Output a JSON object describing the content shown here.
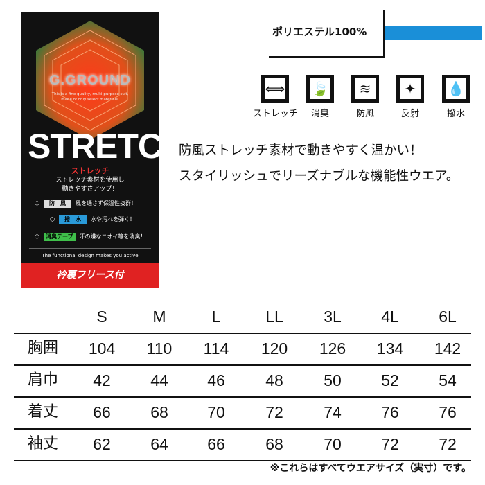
{
  "card": {
    "brand": "G.GROUND",
    "tagline_1": "This is a fine quality, multi-purpose suit,",
    "tagline_2": "made of only select materials.",
    "headline": "STRETCH",
    "headline_kana": "ストレッチ",
    "desc_1": "ストレッチ素材を使用し",
    "desc_2": "動きやすさアップ！",
    "features": [
      {
        "name": "防　風",
        "text": "風を通さず保温性抜群！",
        "color": "#dddddd"
      },
      {
        "name": "撥　水",
        "text": "水や汚れを弾く！",
        "color": "#2a9ad8"
      },
      {
        "name": "消臭テープ",
        "text": "汗の嫌なニオイ等を消臭！",
        "color": "#3fbf4a"
      }
    ],
    "slogan": "The functional design makes you active",
    "banner": "衿裏フリース付"
  },
  "material": {
    "label": "ポリエステル100%",
    "color": "#1a8fd8"
  },
  "icons": [
    {
      "icon": "stretch-arrow",
      "label": "ストレッチ"
    },
    {
      "icon": "leaf",
      "label": "消臭"
    },
    {
      "icon": "wind",
      "label": "防風"
    },
    {
      "icon": "sparkle",
      "label": "反射"
    },
    {
      "icon": "water-drops",
      "label": "撥水"
    }
  ],
  "description": [
    "防風ストレッチ素材で動きやすく温かい！",
    "スタイリッシュでリーズナブルな機能性ウエア。"
  ],
  "size_table": {
    "headers": [
      "S",
      "M",
      "L",
      "LL",
      "3L",
      "4L",
      "6L"
    ],
    "rows": [
      {
        "label": "胸囲",
        "values": [
          "104",
          "110",
          "114",
          "120",
          "126",
          "134",
          "142"
        ]
      },
      {
        "label": "肩巾",
        "values": [
          "42",
          "44",
          "46",
          "48",
          "50",
          "52",
          "54"
        ]
      },
      {
        "label": "着丈",
        "values": [
          "66",
          "68",
          "70",
          "72",
          "74",
          "76",
          "76"
        ]
      },
      {
        "label": "袖丈",
        "values": [
          "62",
          "64",
          "66",
          "68",
          "70",
          "72",
          "72"
        ]
      }
    ]
  },
  "footnote": "※これらはすべてウエアサイズ（実寸）です。"
}
